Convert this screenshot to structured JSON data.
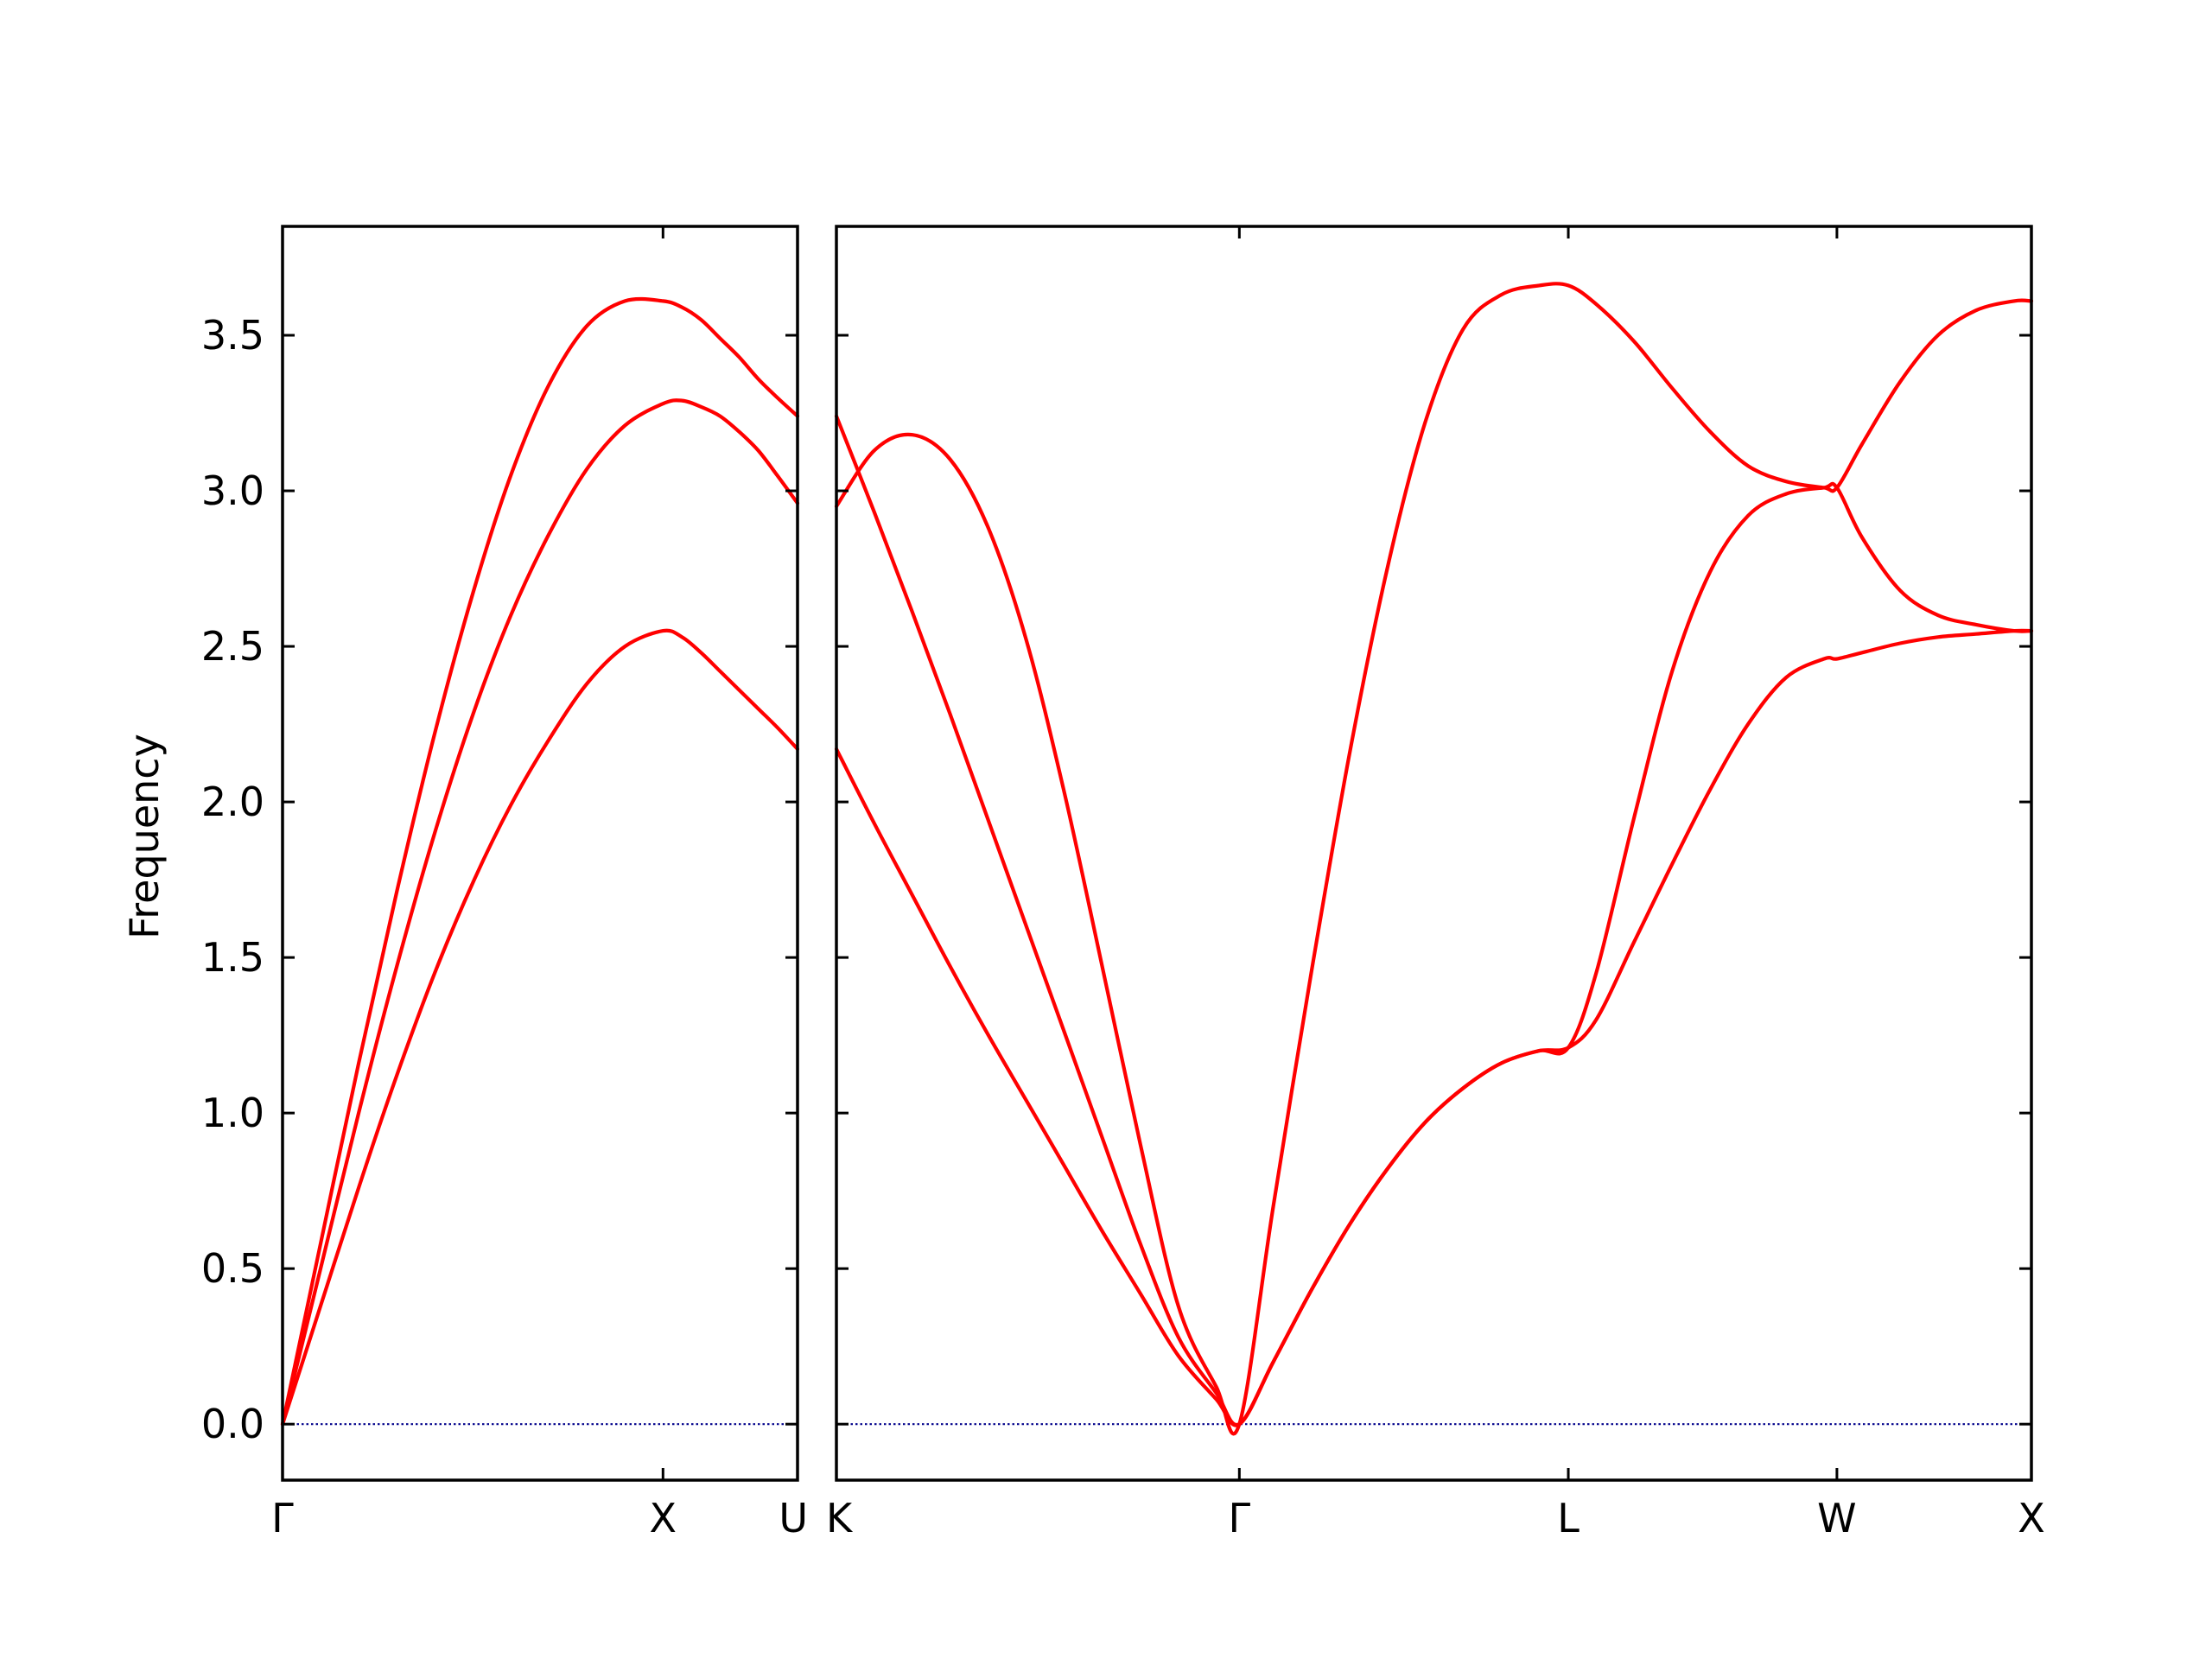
{
  "chart_data": {
    "type": "line",
    "ylabel": "Frequency",
    "ylim": [
      -0.18,
      3.85
    ],
    "yticks": [
      "0.0",
      "0.5",
      "1.0",
      "1.5",
      "2.0",
      "2.5",
      "3.0",
      "3.5"
    ],
    "ytick_values": [
      0.0,
      0.5,
      1.0,
      1.5,
      2.0,
      2.5,
      3.0,
      3.5
    ],
    "colors": {
      "bands": "#ff0000",
      "zero_line": "#00008b",
      "axes": "#000000"
    },
    "grid": false,
    "panels": [
      {
        "name": "panel-left",
        "xlim": [
          0,
          1.3536
        ],
        "ticks": [
          {
            "x": 0.0,
            "label": "Γ"
          },
          {
            "x": 1.0,
            "label": "X"
          },
          {
            "x": 1.3536,
            "label": "U"
          }
        ],
        "series": [
          {
            "x": [
              0,
              0.1,
              0.2,
              0.3,
              0.4,
              0.5,
              0.6,
              0.7,
              0.8,
              0.9,
              1.0,
              1.05,
              1.1,
              1.15,
              1.2,
              1.25,
              1.3,
              1.3536
            ],
            "values": [
              0,
              0.5,
              1.0,
              1.47,
              1.9,
              2.28,
              2.6,
              2.86,
              3.07,
              3.21,
              3.28,
              3.29,
              3.27,
              3.24,
              3.19,
              3.13,
              3.05,
              2.96
            ]
          },
          {
            "x": [
              0,
              0.1,
              0.2,
              0.3,
              0.4,
              0.5,
              0.6,
              0.7,
              0.8,
              0.9,
              1.0,
              1.05,
              1.1,
              1.15,
              1.2,
              1.25,
              1.3,
              1.3536
            ],
            "values": [
              0,
              0.38,
              0.76,
              1.12,
              1.45,
              1.74,
              1.99,
              2.2,
              2.38,
              2.5,
              2.55,
              2.53,
              2.48,
              2.42,
              2.36,
              2.3,
              2.24,
              2.17
            ]
          },
          {
            "x": [
              0,
              0.1,
              0.2,
              0.3,
              0.4,
              0.5,
              0.6,
              0.7,
              0.8,
              0.9,
              1.0,
              1.05,
              1.1,
              1.15,
              1.2,
              1.25,
              1.3,
              1.3536
            ],
            "values": [
              0,
              0.58,
              1.16,
              1.71,
              2.22,
              2.67,
              3.05,
              3.34,
              3.53,
              3.61,
              3.61,
              3.59,
              3.55,
              3.49,
              3.43,
              3.36,
              3.3,
              3.24
            ]
          }
        ]
      },
      {
        "name": "panel-right",
        "xlim": [
          0,
          3.1458
        ],
        "ticks": [
          {
            "x": 0.0,
            "label": "K"
          },
          {
            "x": 1.0607,
            "label": "Γ"
          },
          {
            "x": 1.9267,
            "label": "L"
          },
          {
            "x": 2.6338,
            "label": "W"
          },
          {
            "x": 3.1458,
            "label": "X"
          }
        ],
        "series": [
          {
            "x": [
              0,
              0.1,
              0.2,
              0.3,
              0.4,
              0.5,
              0.6,
              0.7,
              0.8,
              0.9,
              1.0,
              1.0607,
              1.15,
              1.25,
              1.35,
              1.45,
              1.55,
              1.65,
              1.75,
              1.85,
              1.9267,
              2.0,
              2.1,
              2.2,
              2.3,
              2.4,
              2.5,
              2.6,
              2.6338,
              2.7,
              2.8,
              2.9,
              3.0,
              3.1,
              3.1458
            ],
            "values": [
              2.17,
              1.93,
              1.7,
              1.47,
              1.25,
              1.04,
              0.83,
              0.62,
              0.42,
              0.22,
              0.08,
              0.0,
              0.2,
              0.43,
              0.64,
              0.82,
              0.97,
              1.08,
              1.16,
              1.2,
              1.21,
              1.3,
              1.55,
              1.8,
              2.04,
              2.25,
              2.4,
              2.46,
              2.46,
              2.48,
              2.51,
              2.53,
              2.54,
              2.55,
              2.55
            ]
          },
          {
            "x": [
              0,
              0.1,
              0.2,
              0.3,
              0.4,
              0.5,
              0.6,
              0.7,
              0.8,
              0.9,
              1.0,
              1.0607,
              1.15,
              1.25,
              1.35,
              1.45,
              1.55,
              1.65,
              1.75,
              1.85,
              1.9267,
              2.0,
              2.1,
              2.2,
              2.3,
              2.4,
              2.5,
              2.6,
              2.6338,
              2.7,
              2.8,
              2.9,
              3.0,
              3.1,
              3.1458
            ],
            "values": [
              3.24,
              2.93,
              2.61,
              2.28,
              1.94,
              1.6,
              1.26,
              0.92,
              0.58,
              0.28,
              0.1,
              0.0,
              0.2,
              0.43,
              0.64,
              0.82,
              0.97,
              1.08,
              1.16,
              1.2,
              1.21,
              1.45,
              1.95,
              2.42,
              2.74,
              2.92,
              2.99,
              3.01,
              3.01,
              2.85,
              2.68,
              2.6,
              2.57,
              2.55,
              2.55
            ]
          },
          {
            "x": [
              0,
              0.1,
              0.2,
              0.3,
              0.4,
              0.5,
              0.6,
              0.7,
              0.8,
              0.9,
              1.0,
              1.0607,
              1.15,
              1.25,
              1.35,
              1.45,
              1.55,
              1.65,
              1.75,
              1.85,
              1.9267,
              2.0,
              2.1,
              2.2,
              2.3,
              2.4,
              2.5,
              2.6,
              2.6338,
              2.7,
              2.8,
              2.9,
              3.0,
              3.1,
              3.1458
            ],
            "values": [
              2.95,
              3.13,
              3.18,
              3.1,
              2.88,
              2.52,
              2.03,
              1.47,
              0.9,
              0.38,
              0.12,
              0.0,
              0.7,
              1.45,
              2.15,
              2.75,
              3.22,
              3.52,
              3.63,
              3.66,
              3.66,
              3.6,
              3.48,
              3.33,
              3.19,
              3.08,
              3.03,
              3.01,
              3.01,
              3.15,
              3.35,
              3.5,
              3.58,
              3.61,
              3.61
            ]
          }
        ]
      }
    ]
  }
}
